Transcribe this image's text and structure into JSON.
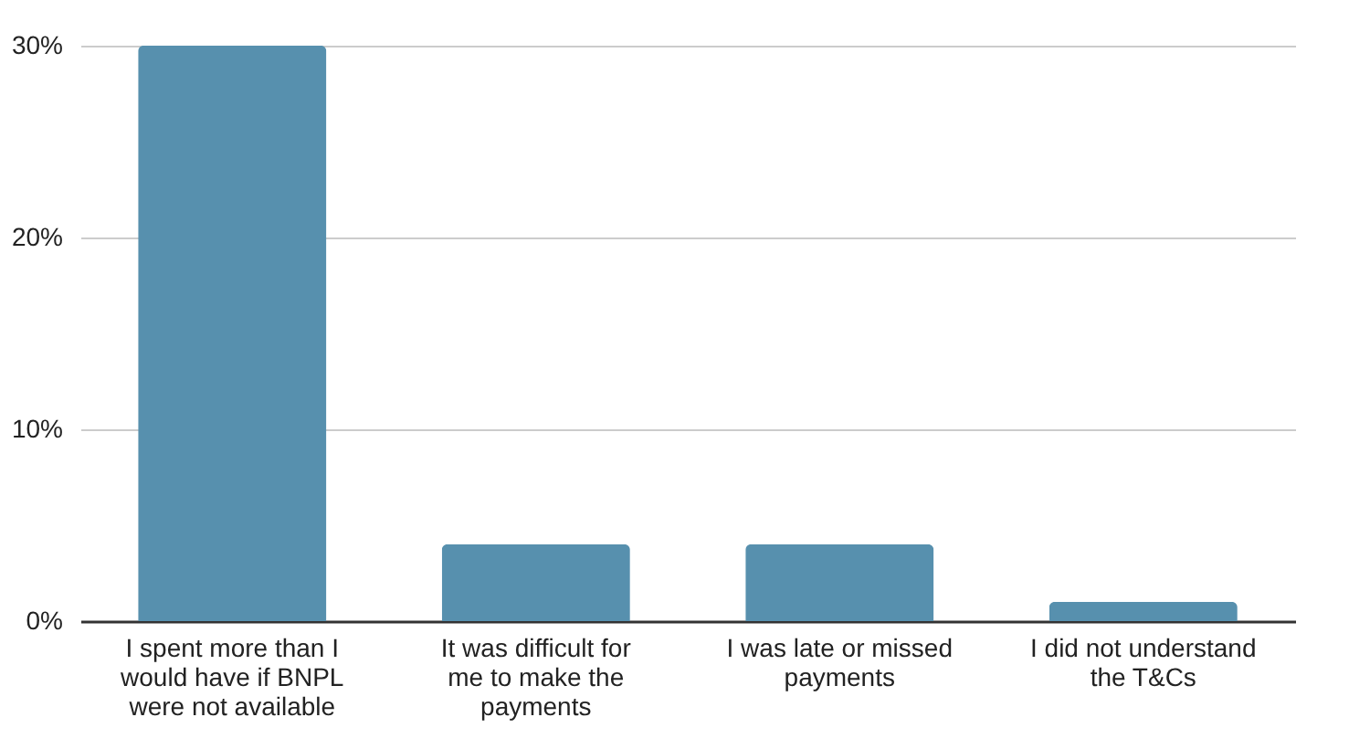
{
  "chart_data": {
    "type": "bar",
    "categories": [
      "I spent more than I would have if BNPL were not available",
      "It was difficult for me to make the payments",
      "I was late or missed payments",
      "I did not understand the T&Cs"
    ],
    "values": [
      30,
      4,
      4,
      1
    ],
    "color": "#5790ae",
    "ylim": [
      0,
      30
    ],
    "yticks": [
      {
        "value": 0,
        "label": "0%"
      },
      {
        "value": 10,
        "label": "10%"
      },
      {
        "value": 20,
        "label": "20%"
      },
      {
        "value": 30,
        "label": "30%"
      }
    ],
    "grid": "y"
  }
}
